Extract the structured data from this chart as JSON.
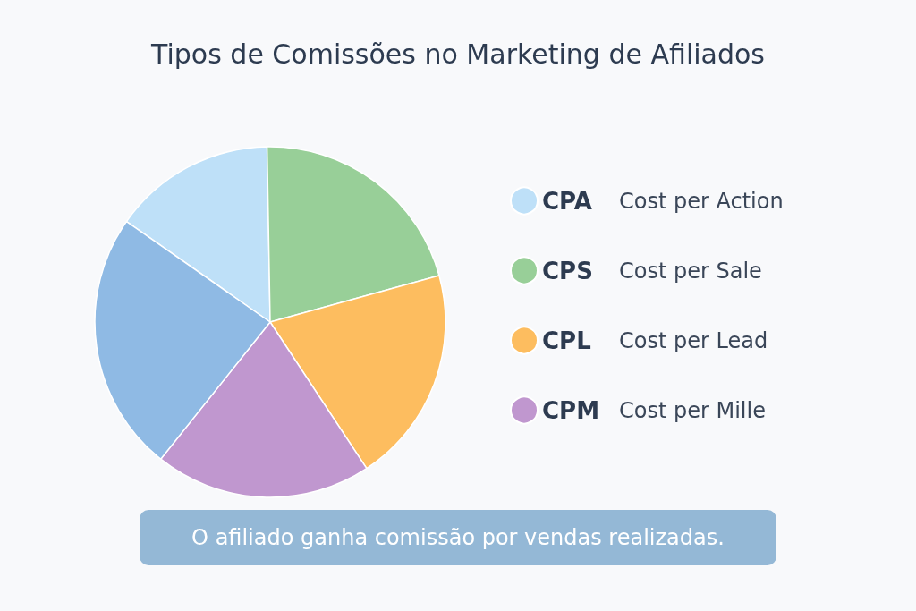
{
  "chart_data": {
    "type": "pie",
    "title": "Tipos de Comissões no Marketing de Afiliados",
    "categories": [
      "CPA Cost per Action",
      "CPS Cost per Sale",
      "CPL Cost per Lead",
      "CPM Cost per Mille",
      null
    ],
    "values": [
      15,
      21,
      20,
      20,
      24
    ],
    "colors": [
      "#bee0f8",
      "#98cf98",
      "#fdbd5f",
      "#c097cf",
      "#8fbae4"
    ],
    "legend": "right",
    "annotations": [
      "O afiliado ganha comissão por vendas realizadas."
    ]
  }
}
